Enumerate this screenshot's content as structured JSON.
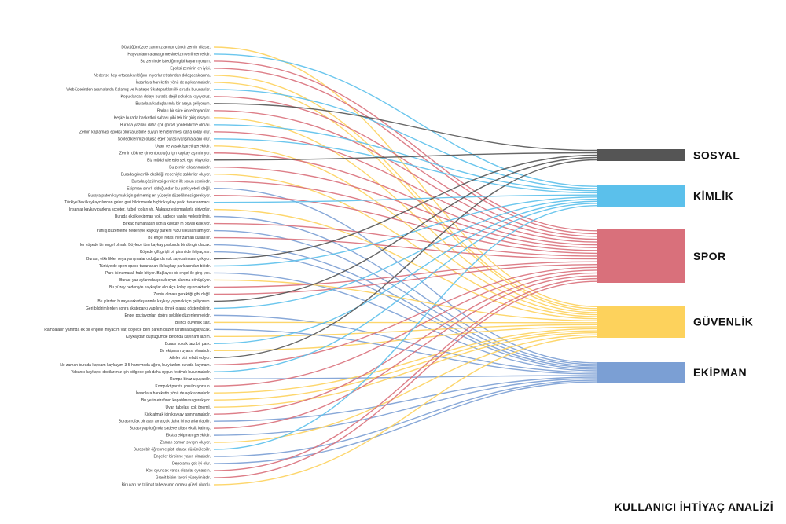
{
  "footer_title": "KULLANICI İHTİYAÇ ANALİZİ",
  "categories": [
    {
      "key": "sosyal",
      "label": "SOSYAL",
      "color": "#555555"
    },
    {
      "key": "kimlik",
      "label": "KİMLİK",
      "color": "#5bc0eb"
    },
    {
      "key": "spor",
      "label": "SPOR",
      "color": "#d9707b"
    },
    {
      "key": "guvenlik",
      "label": "GÜVENLİK",
      "color": "#fdd25c"
    },
    {
      "key": "ekipman",
      "label": "EKİPMAN",
      "color": "#7b9fd4"
    }
  ],
  "statements": [
    {
      "text": "Düştüğümüzde canımız acıyor çünkü zemin cilasız.",
      "category": "guvenlik"
    },
    {
      "text": "Hayvanların alana girmesine izin verilmemelidir.",
      "category": "kimlik"
    },
    {
      "text": "Bu zeminde istediğim gibi kayamıyorum.",
      "category": "spor"
    },
    {
      "text": "Epoksi zeminin en iyisi.",
      "category": "spor"
    },
    {
      "text": "Nedense hep ortada kıyıldığını iniyorlar etrafından dolaşacaklarına.",
      "category": "guvenlik"
    },
    {
      "text": "İnsanlara hareketin yönü de açıklanmalıdır.",
      "category": "guvenlik"
    },
    {
      "text": "Web üzerinden aramalarda Kalamış ve Maltepe Skateparkları ilk sırada bulunanlar.",
      "category": "kimlik"
    },
    {
      "text": "Kopuklardan dolayı burada değil sokakta kayıyoruz.",
      "category": "spor"
    },
    {
      "text": "Burada arkadaşlarımla bir araya geliyorum.",
      "category": "sosyal"
    },
    {
      "text": "Barları bir süre önce boyadılar.",
      "category": "spor"
    },
    {
      "text": "Keşke burada basketbol sahası gibi tek bir giriş olsaydı.",
      "category": "guvenlik"
    },
    {
      "text": "Burada yazıları daha çok görsel yönlendirme olmalı.",
      "category": "kimlik"
    },
    {
      "text": "Zemin kaplaması epoksi olursa üstüne suyun temizlenmesi daha kolay olur.",
      "category": "spor"
    },
    {
      "text": "Söylediklerimizi olursa eğer burası yarışma alanı olur.",
      "category": "kimlik"
    },
    {
      "text": "Uyarı ve yasak işareti gereklidir.",
      "category": "guvenlik"
    },
    {
      "text": "Zemin dökme çimentodoluğu için kaykay aşındırıyor.",
      "category": "spor"
    },
    {
      "text": "Biz müdahale edersek ego oluyorlar.",
      "category": "sosyal"
    },
    {
      "text": "Bu zemin cilalanmalıdır.",
      "category": "spor"
    },
    {
      "text": "Burada güvenlik eksikliği nedeniyle saldırılar oluyor.",
      "category": "guvenlik"
    },
    {
      "text": "Burada çözülmesi gereken ilk sorun zemindir.",
      "category": "spor"
    },
    {
      "text": "Ekipman sınırlı olduğundan bu park yeterli değil.",
      "category": "ekipman"
    },
    {
      "text": "Buraya paten kaymak için gelmemiş en yüzeyin düzeltilmesi gerekiyor.",
      "category": "spor"
    },
    {
      "text": "Türkiye'deki kaykaycılardan gelen geri bildirimlerle hiçbir kaykay parkı tasarlanmadı.",
      "category": "kimlik"
    },
    {
      "text": "İnsanlar kaykay parkına scooter, futbol topları vb. Alakasız ekipmanlarla giriyorlar.",
      "category": "guvenlik"
    },
    {
      "text": "Burada eksik ekipman yok, sadece yanlış yerleştirilmiş.",
      "category": "ekipman"
    },
    {
      "text": "Birkaç numaradan sonra kaykay m boyalı kalkıyor.",
      "category": "spor"
    },
    {
      "text": "Yanlış düzenleme nedeniyle kaykay parkını %50'si kullanılamıyor.",
      "category": "ekipman"
    },
    {
      "text": "Bu engel rotası her zaman kullanılır.",
      "category": "spor"
    },
    {
      "text": "Her köşede bir engel olmalı. Böylece tüm kaykay parkında bir döngü olacak.",
      "category": "ekipman"
    },
    {
      "text": "Köşede çift girişli bir piramide ihtiyaç var.",
      "category": "ekipman"
    },
    {
      "text": "Burası; etkinlikler veya yarışmalar olduğunda çok sayıda insanı çekiyor.",
      "category": "sosyal"
    },
    {
      "text": "Türkiye'de open-space tasarlanan ilk kaykay parklarından biridir.",
      "category": "kimlik"
    },
    {
      "text": "Park iki numaralı hale bitiyor. Bağlayıcı bir engel ile giriş yok.",
      "category": "ekipman"
    },
    {
      "text": "Burası yaz aylarında çocuk oyun alanına dönüşüyor.",
      "category": "guvenlik"
    },
    {
      "text": "Bu yüzey nedeniyle kaykaylar oldukça kolay aşınmaktadır.",
      "category": "spor"
    },
    {
      "text": "Zemin olması gerektiği gibi değil.",
      "category": "spor"
    },
    {
      "text": "Bu yüzden buraya arkadaşlarımla kaykay yapmak için geliyorum.",
      "category": "sosyal"
    },
    {
      "text": "Geri bildirimlerden sonra skateparkı yapılırsa örnek olarak gösterebiliriz.",
      "category": "kimlik"
    },
    {
      "text": "Engel pozisyonları doğru şekilde düzenlenmelidir.",
      "category": "ekipman"
    },
    {
      "text": "Bilinçli güvenlik şart.",
      "category": "guvenlik"
    },
    {
      "text": "Rampaların yanında ek bir engele ihtiyacım var, böylece beni parkın düzen tarafına bağlayacak.",
      "category": "ekipman"
    },
    {
      "text": "Kaykaydan düştüğümde betonda kayınam lazım.",
      "category": "guvenlik"
    },
    {
      "text": "Burası sokak tarzıbir park.",
      "category": "kimlik"
    },
    {
      "text": "Bir ekipman uyarısı olmalıdır.",
      "category": "guvenlik"
    },
    {
      "text": "Aileler bizi tehdit ediyor.",
      "category": "sosyal"
    },
    {
      "text": "Ne zaman burada kaysam kaykayım 3-5 hanevrada ağırır, bu yüzden burada kayınam.",
      "category": "spor"
    },
    {
      "text": "Yabancı kaykaycı dostlarımız için bölgede çok daha uygun festivalı bulunmalıdır.",
      "category": "kimlik"
    },
    {
      "text": "Rampa biraz uçuyabilir.",
      "category": "ekipman"
    },
    {
      "text": "Kompakt parkta yorulmuyorsun.",
      "category": "spor"
    },
    {
      "text": "İnsanlara hareketin yönü de açıklanmalıdır.",
      "category": "guvenlik"
    },
    {
      "text": "Bu yerin etrafının kapatılması gerekiyor.",
      "category": "guvenlik"
    },
    {
      "text": "Uyarı tabelası çok önemli.",
      "category": "guvenlik"
    },
    {
      "text": "Kick atmak için kaykay aşınmamalıdır.",
      "category": "spor"
    },
    {
      "text": "Burası rufak bir alan ama çok daha iyi yararlanılabilir.",
      "category": "ekipman"
    },
    {
      "text": "Burası yapıldığında sadece cilası eksik kalmış.",
      "category": "spor"
    },
    {
      "text": "Ekstra ekipman gereklidir.",
      "category": "ekipman"
    },
    {
      "text": "Zaman zaman sıvıgın oluyor.",
      "category": "guvenlik"
    },
    {
      "text": "Burası bir öğrenme pisti olarak düşünülebilir.",
      "category": "kimlik"
    },
    {
      "text": "Engeller birbirine yakın olmalıdır.",
      "category": "ekipman"
    },
    {
      "text": "Depolama çok iyi olur.",
      "category": "ekipman"
    },
    {
      "text": "Koç oyuncak varsa olsadar oynarsın.",
      "category": "spor"
    },
    {
      "text": "Granit bizim favori yüzeyimizdir.",
      "category": "spor"
    },
    {
      "text": "Bir uyarı ve talimat tabelasının olması güzel olurdu.",
      "category": "guvenlik"
    }
  ]
}
